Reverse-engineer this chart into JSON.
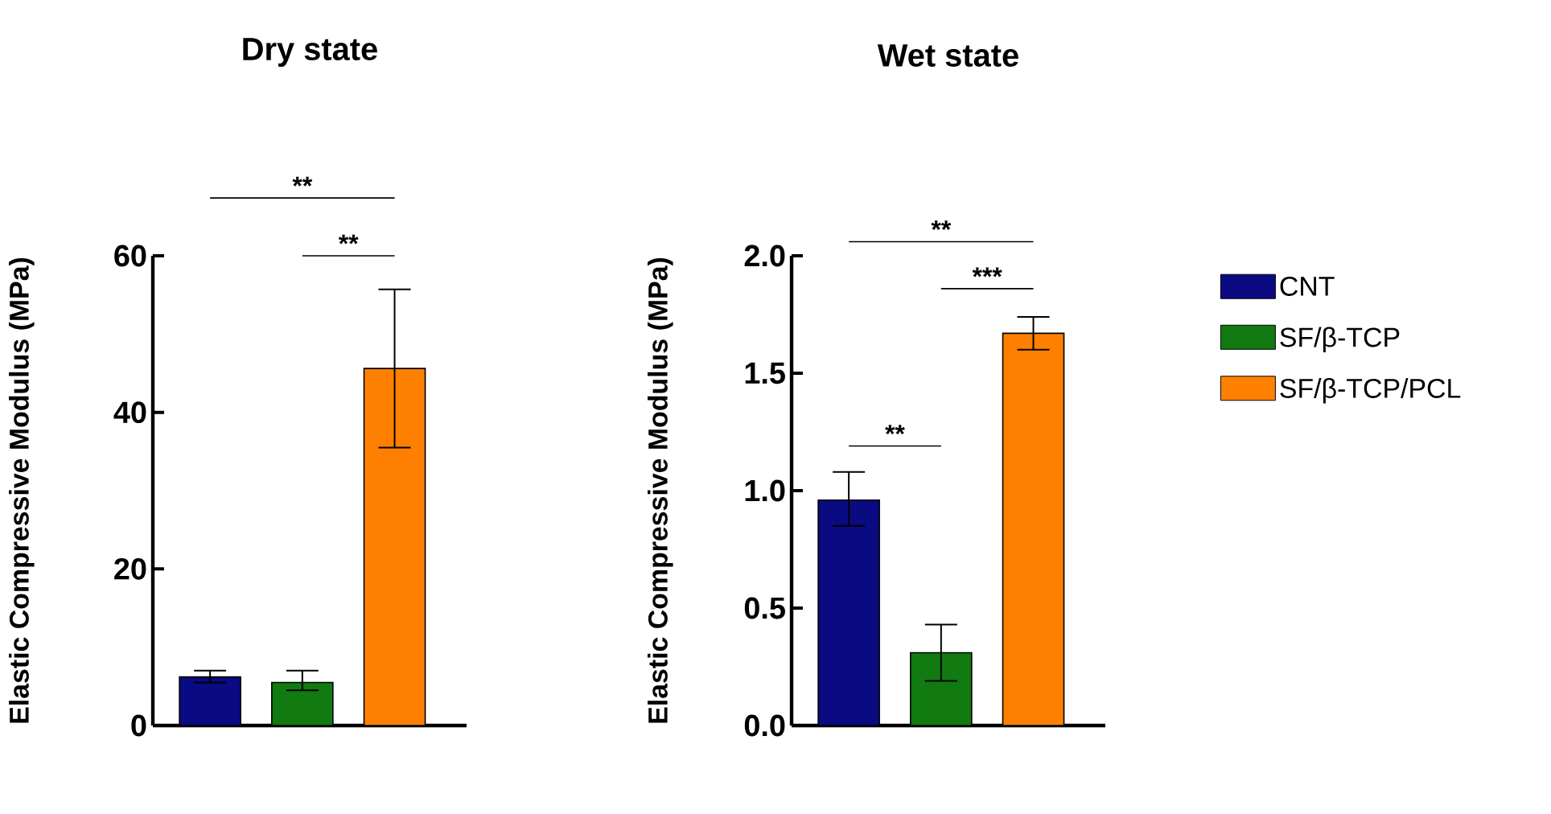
{
  "chart_data": [
    {
      "type": "bar",
      "title": "Dry state",
      "ylabel": "Elastic Compressive Modulus (MPa)",
      "categories": [
        null,
        null,
        null
      ],
      "ylim": [
        0,
        60
      ],
      "yticks": [
        0,
        20,
        40,
        60
      ],
      "tick_labels": "y",
      "grid": false,
      "legend": false,
      "series": [
        {
          "color": "#0a0a82",
          "values": [
            6.2,
            null,
            null
          ],
          "errors": [
            [
              5.5,
              7.0
            ],
            null,
            null
          ]
        },
        {
          "color": "#117a11",
          "values": [
            null,
            5.5,
            null
          ],
          "errors": [
            null,
            [
              4.5,
              7.0
            ],
            null
          ]
        },
        {
          "color": "#ff8000",
          "values": [
            null,
            null,
            45.6
          ],
          "errors": [
            null,
            null,
            [
              35.5,
              55.7
            ]
          ]
        }
      ],
      "annotations": [
        "**",
        "**"
      ]
    },
    {
      "type": "bar",
      "title": "Wet state",
      "ylabel": "Elastic Compressive Modulus (MPa)",
      "categories": [
        null,
        null,
        null
      ],
      "ylim": [
        0,
        2.0
      ],
      "yticks": [
        {
          "value": 0,
          "label": "0.0"
        },
        0.5,
        {
          "value": 1,
          "label": "1.0"
        },
        1.5,
        {
          "value": 2,
          "label": "2.0"
        }
      ],
      "tick_labels": "y",
      "grid": false,
      "legend": "right",
      "series": [
        {
          "name": "CNT",
          "color": "#0a0a82",
          "values": [
            0.96,
            null,
            null
          ],
          "errors": [
            [
              0.85,
              1.08
            ],
            null,
            null
          ]
        },
        {
          "name": "SF/β-TCP",
          "color": "#117a11",
          "values": [
            null,
            0.31,
            null
          ],
          "errors": [
            null,
            [
              0.19,
              0.43
            ],
            null
          ]
        },
        {
          "name": "SF/β-TCP/PCL",
          "color": "#ff8000",
          "values": [
            null,
            null,
            1.67
          ],
          "errors": [
            null,
            null,
            [
              1.6,
              1.74
            ]
          ]
        }
      ],
      "annotations": [
        "**",
        "***",
        "**"
      ]
    }
  ]
}
